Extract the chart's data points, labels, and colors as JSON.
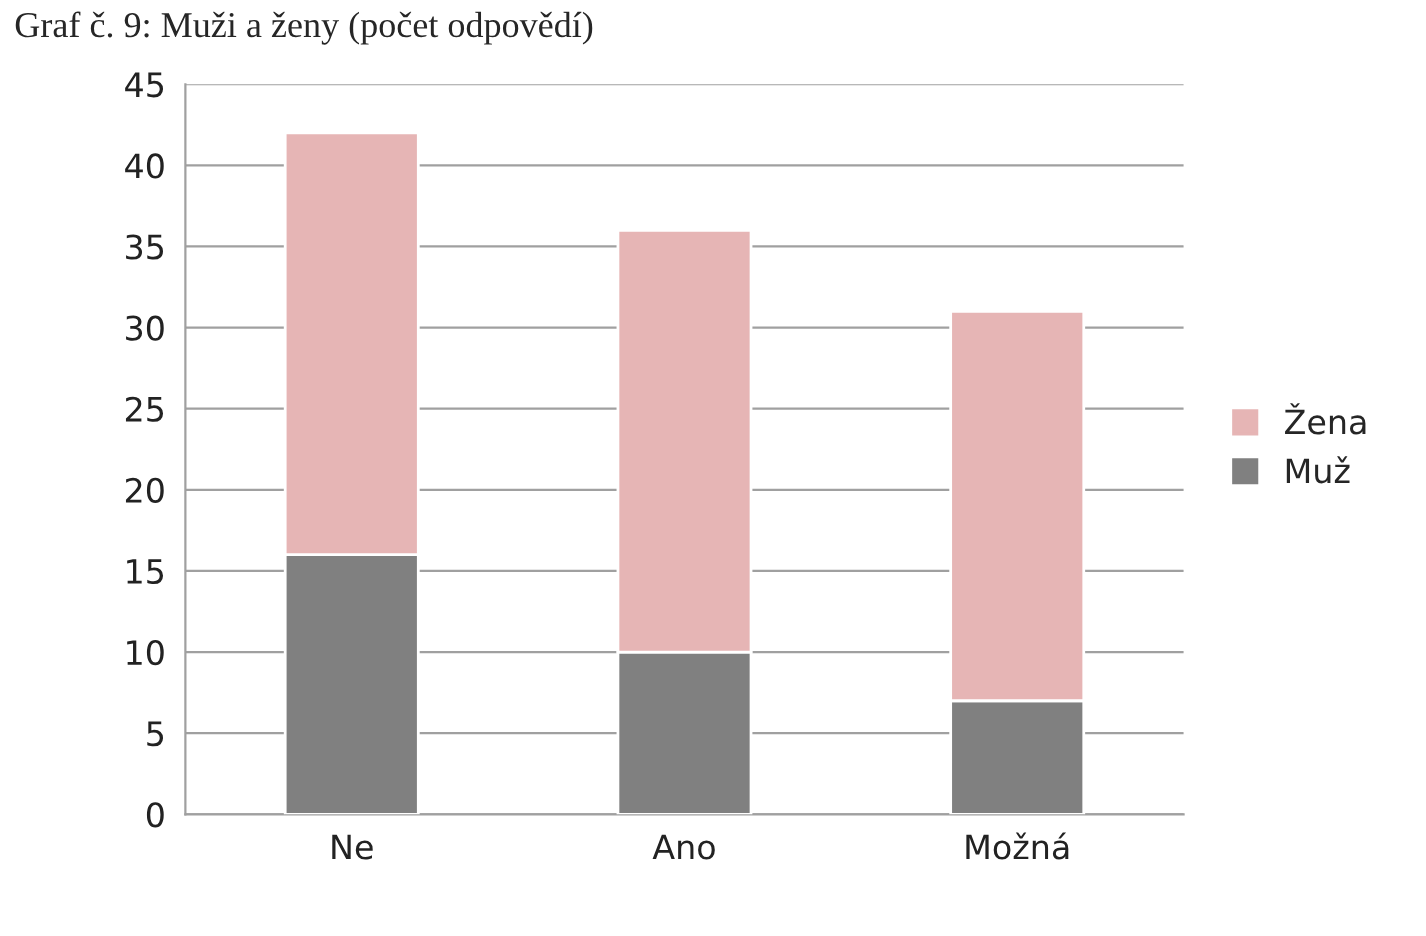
{
  "chart_data": {
    "type": "bar",
    "title": "Graf č. 9: Muži a ženy (počet odpovědí)",
    "categories": [
      "Ne",
      "Ano",
      "Možná"
    ],
    "stacked": true,
    "series": [
      {
        "name": "Muž",
        "color": "#808080",
        "values": [
          16,
          10,
          7
        ]
      },
      {
        "name": "Žena",
        "color": "#e6b5b5",
        "values": [
          26,
          26,
          24
        ]
      }
    ],
    "ylim": [
      0,
      45
    ],
    "yticks": [
      0,
      5,
      10,
      15,
      20,
      25,
      30,
      35,
      40,
      45
    ],
    "grid": "y",
    "legend": "right"
  }
}
